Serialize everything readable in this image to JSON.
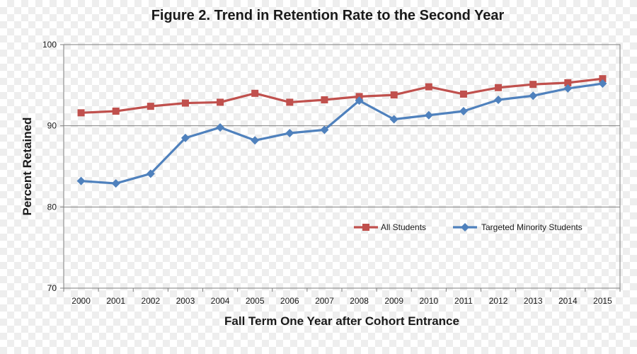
{
  "chart_data": {
    "type": "line",
    "title": "Figure 2. Trend in Retention Rate to the Second Year",
    "xlabel": "Fall Term One Year after Cohort Entrance",
    "ylabel": "Percent Retained",
    "categories": [
      "2000",
      "2001",
      "2002",
      "2003",
      "2004",
      "2005",
      "2006",
      "2007",
      "2008",
      "2009",
      "2010",
      "2011",
      "2012",
      "2013",
      "2014",
      "2015"
    ],
    "ylim": [
      70,
      100
    ],
    "yticks": [
      70,
      80,
      90,
      100
    ],
    "grid": "horizontal",
    "legend_position": "lower-right",
    "series": [
      {
        "name": "All Students",
        "color": "#c0504d",
        "marker": "square",
        "values": [
          91.6,
          91.8,
          92.4,
          92.8,
          92.9,
          94.0,
          92.9,
          93.2,
          93.6,
          93.8,
          94.8,
          93.9,
          94.7,
          95.1,
          95.3,
          95.8
        ]
      },
      {
        "name": "Targeted Minority Students",
        "color": "#4f81bd",
        "marker": "diamond",
        "values": [
          83.2,
          82.9,
          84.1,
          88.5,
          89.8,
          88.2,
          89.1,
          89.5,
          93.1,
          90.8,
          91.3,
          91.8,
          93.2,
          93.7,
          94.6,
          95.2
        ]
      }
    ]
  }
}
